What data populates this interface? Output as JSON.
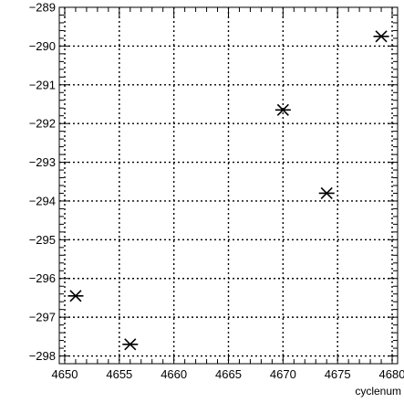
{
  "chart_data": {
    "type": "scatter",
    "title": "",
    "xlabel": "cyclenum",
    "ylabel": "",
    "xlim": [
      4649.5,
      4680.5
    ],
    "ylim": [
      -298.2,
      -289.0
    ],
    "grid": true,
    "marker": "asterisk",
    "colors": {
      "marker": "#000000",
      "axis": "#000000",
      "grid": "#000000"
    },
    "xticks": [
      4650,
      4655,
      4660,
      4665,
      4670,
      4675,
      4680
    ],
    "yticks": [
      -298,
      -297,
      -296,
      -295,
      -294,
      -293,
      -292,
      -291,
      -290,
      -289
    ],
    "xtick_labels": [
      "4650",
      "4655",
      "4660",
      "4665",
      "4670",
      "4675",
      "4680"
    ],
    "ytick_labels": [
      "−298",
      "−297",
      "−296",
      "−295",
      "−294",
      "−293",
      "−292",
      "−291",
      "−290",
      "−289"
    ],
    "points": [
      {
        "x": 4651,
        "y": -296.45
      },
      {
        "x": 4656,
        "y": -297.7
      },
      {
        "x": 4670,
        "y": -291.65
      },
      {
        "x": 4674,
        "y": -293.8
      },
      {
        "x": 4679,
        "y": -289.75
      }
    ]
  }
}
